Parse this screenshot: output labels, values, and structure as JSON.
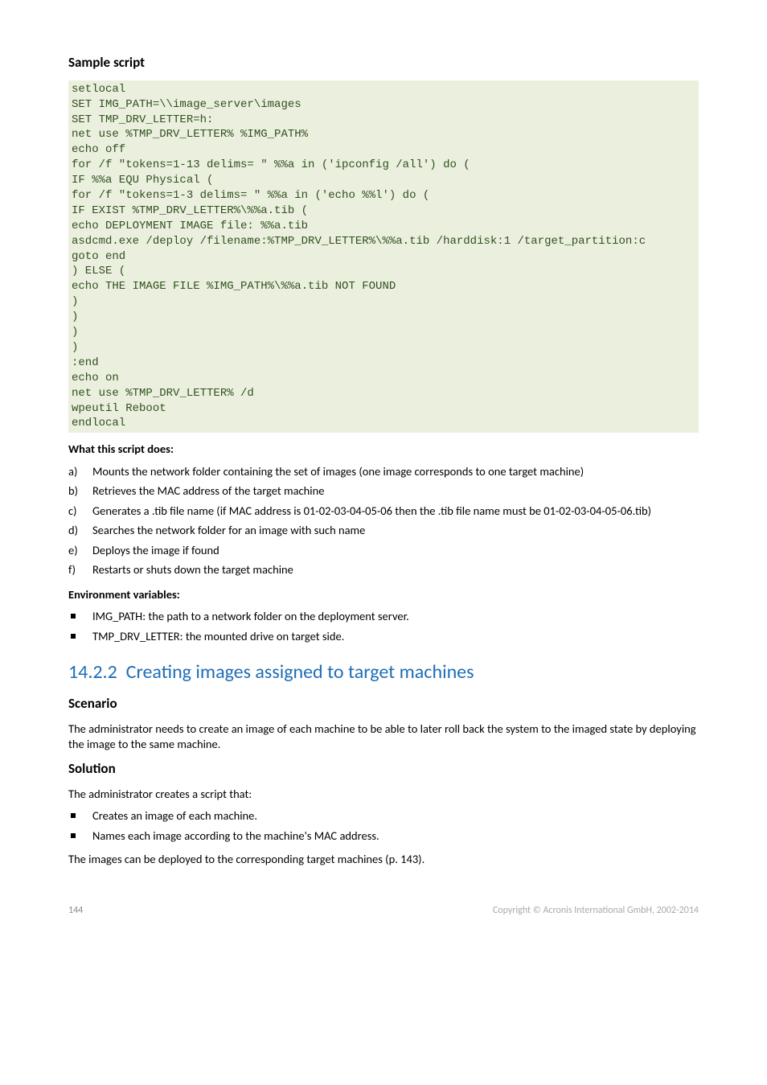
{
  "sample_script": {
    "heading": "Sample script",
    "code": "setlocal\nSET IMG_PATH=\\\\image_server\\images\nSET TMP_DRV_LETTER=h:\nnet use %TMP_DRV_LETTER% %IMG_PATH%\necho off\nfor /f \"tokens=1-13 delims= \" %%a in ('ipconfig /all') do (\nIF %%a EQU Physical (\nfor /f \"tokens=1-3 delims= \" %%a in ('echo %%l') do (\nIF EXIST %TMP_DRV_LETTER%\\%%a.tib (\necho DEPLOYMENT IMAGE file: %%a.tib\nasdcmd.exe /deploy /filename:%TMP_DRV_LETTER%\\%%a.tib /harddisk:1 /target_partition:c\ngoto end\n) ELSE (\necho THE IMAGE FILE %IMG_PATH%\\%%a.tib NOT FOUND\n)\n)\n)\n)\n:end\necho on\nnet use %TMP_DRV_LETTER% /d\nwpeutil Reboot\nendlocal"
  },
  "what_does": {
    "heading": "What this script does:",
    "items": [
      {
        "marker": "a)",
        "text": "Mounts the network folder containing the set of images (one image corresponds to one target machine)"
      },
      {
        "marker": "b)",
        "text": "Retrieves the MAC address of the target machine"
      },
      {
        "marker": "c)",
        "text": "Generates a .tib file name (if MAC address is 01-02-03-04-05-06 then the .tib file name must be 01-02-03-04-05-06.tib)"
      },
      {
        "marker": "d)",
        "text": "Searches the network folder for an image with such name"
      },
      {
        "marker": "e)",
        "text": "Deploys the image if found"
      },
      {
        "marker": "f)",
        "text": "Restarts or shuts down the target machine"
      }
    ]
  },
  "env_vars": {
    "heading": "Environment variables:",
    "items": [
      "IMG_PATH: the path to a network folder on the deployment server.",
      "TMP_DRV_LETTER: the mounted drive on target side."
    ]
  },
  "section": {
    "number": "14.2.2",
    "title": "Creating images assigned to target machines"
  },
  "scenario": {
    "heading": "Scenario",
    "text": "The administrator needs to create an image of each machine to be able to later roll back the system to the imaged state by deploying the image to the same machine."
  },
  "solution": {
    "heading": "Solution",
    "intro": "The administrator creates a script that:",
    "items": [
      "Creates an image of each machine.",
      "Names each image according to the machine's MAC address."
    ],
    "outro": "The images can be deployed to the corresponding target machines (p. 143)."
  },
  "footer": {
    "page": "144",
    "copyright": "Copyright © Acronis International GmbH, 2002-2014"
  }
}
